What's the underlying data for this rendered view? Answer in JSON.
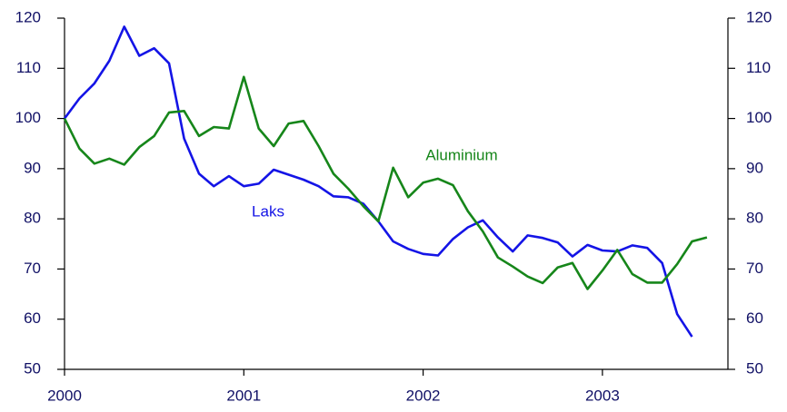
{
  "chart_data": {
    "type": "line",
    "x": [
      2000,
      2000.083,
      2000.167,
      2000.25,
      2000.333,
      2000.417,
      2000.5,
      2000.583,
      2000.667,
      2000.75,
      2000.833,
      2000.917,
      2001,
      2001.083,
      2001.167,
      2001.25,
      2001.333,
      2001.417,
      2001.5,
      2001.583,
      2001.667,
      2001.75,
      2001.833,
      2001.917,
      2002,
      2002.083,
      2002.167,
      2002.25,
      2002.333,
      2002.417,
      2002.5,
      2002.583,
      2002.667,
      2002.75,
      2002.833,
      2002.917,
      2003,
      2003.083,
      2003.167,
      2003.25,
      2003.333,
      2003.417,
      2003.5,
      2003.583
    ],
    "series": [
      {
        "name": "Laks",
        "color": "#1414e6",
        "values": [
          100,
          104,
          107,
          111.5,
          118.3,
          112.5,
          114,
          111,
          96,
          89,
          86.5,
          88.5,
          86.5,
          87,
          89.8,
          88.8,
          87.8,
          86.5,
          84.5,
          84.3,
          83,
          79.5,
          75.5,
          74,
          73,
          72.7,
          76,
          78.3,
          79.7,
          76.3,
          73.5,
          76.7,
          76.2,
          75.3,
          72.5,
          74.8,
          73.7,
          73.5,
          74.7,
          74.2,
          71.2,
          61,
          56.5,
          null
        ]
      },
      {
        "name": "Aluminium",
        "color": "#16861a",
        "values": [
          100,
          94,
          91,
          92,
          90.8,
          94.3,
          96.5,
          101.2,
          101.5,
          96.5,
          98.3,
          98,
          108.3,
          98,
          94.5,
          99,
          99.5,
          94.5,
          89,
          86,
          82.5,
          79.5,
          90.2,
          84.3,
          87.2,
          88,
          86.7,
          81.5,
          77.5,
          72.3,
          70.5,
          68.5,
          67.2,
          70.3,
          71.2,
          66,
          69.7,
          73.8,
          69,
          67.3,
          67.3,
          71,
          75.5,
          76.3
        ]
      }
    ],
    "xlim": [
      2000,
      2003.7
    ],
    "xticks": [
      2000,
      2001,
      2002,
      2003
    ],
    "ylim": [
      50,
      120
    ],
    "yticks": [
      50,
      60,
      70,
      80,
      90,
      100,
      110,
      120
    ],
    "y2lim": [
      50,
      120
    ],
    "y2ticks": [
      50,
      60,
      70,
      80,
      90,
      100,
      110,
      120
    ]
  }
}
